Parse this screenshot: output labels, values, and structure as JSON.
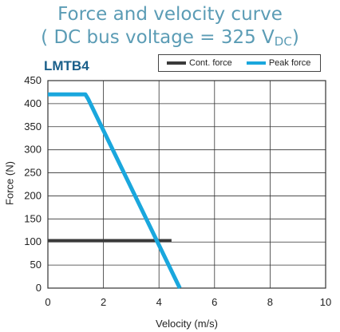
{
  "header": {
    "title_line1": "Force and velocity curve",
    "title_line2_prefix": "( DC bus voltage = 325 V",
    "title_line2_sub": "DC",
    "title_line2_suffix": ")",
    "model": "LMTB4"
  },
  "chart_data": {
    "type": "line",
    "title": "Force and velocity curve ( DC bus voltage = 325 VDC)",
    "xlabel": "Velocity (m/s)",
    "ylabel": "Force (N)",
    "xlim": [
      0,
      10
    ],
    "ylim": [
      0,
      450
    ],
    "xticks": [
      0,
      2,
      4,
      6,
      8,
      10
    ],
    "yticks": [
      0,
      50,
      100,
      150,
      200,
      250,
      300,
      350,
      400,
      450
    ],
    "grid": true,
    "legend_position": "top-right",
    "series": [
      {
        "name": "Cont. force",
        "color": "#3a3a3a",
        "points": [
          [
            0,
            103
          ],
          [
            4.45,
            103
          ]
        ]
      },
      {
        "name": "Peak force",
        "color": "#1aa7dd",
        "points": [
          [
            0,
            420
          ],
          [
            1.35,
            420
          ],
          [
            1.45,
            410
          ],
          [
            4.75,
            0
          ]
        ]
      }
    ]
  }
}
